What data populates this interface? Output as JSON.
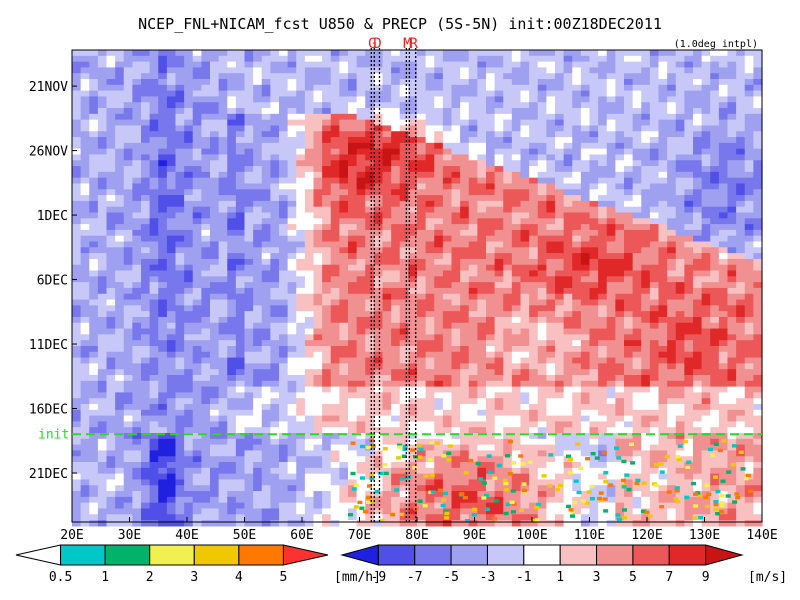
{
  "chart_data": {
    "type": "heatmap",
    "title": "NCEP_FNL+NICAM_fcst U850 & PRECP (5S-5N) init:00Z18DEC2011",
    "subtitle": "(1.0deg intpl)",
    "x_ticks": [
      "20E",
      "30E",
      "40E",
      "50E",
      "60E",
      "70E",
      "80E",
      "90E",
      "100E",
      "110E",
      "120E",
      "130E",
      "140E"
    ],
    "x_range": [
      20,
      140
    ],
    "y_ticks": [
      {
        "label": "21NOV",
        "day": 0
      },
      {
        "label": "26NOV",
        "day": 5
      },
      {
        "label": "1DEC",
        "day": 10
      },
      {
        "label": "6DEC",
        "day": 15
      },
      {
        "label": "11DEC",
        "day": 20
      },
      {
        "label": "16DEC",
        "day": 25
      },
      {
        "label": "21DEC",
        "day": 30
      }
    ],
    "y_range": [
      -2.8,
      33.8
    ],
    "init_line": {
      "label": "init",
      "day": 27,
      "color": "#22dd22"
    },
    "markers": [
      {
        "label": "G",
        "lon": 72.4
      },
      {
        "label": "D",
        "lon": 73.3
      },
      {
        "label": "M",
        "lon": 78.5
      },
      {
        "label": "R",
        "lon": 79.6
      }
    ],
    "marker_color": "#ee2222",
    "precip_colorbar": {
      "unit": "[mm/h]",
      "labels": [
        "0.5",
        "1",
        "2",
        "3",
        "4",
        "5"
      ],
      "colors": [
        "#ffffff",
        "#00c8c8",
        "#00b26a",
        "#f0f050",
        "#f0c800",
        "#ff7800",
        "#fa3232"
      ]
    },
    "u850_colorbar": {
      "unit": "[m/s]",
      "labels": [
        "-9",
        "-7",
        "-5",
        "-3",
        "-1",
        "1",
        "3",
        "5",
        "7",
        "9"
      ],
      "colors": [
        "#2020e0",
        "#5050e8",
        "#7878ec",
        "#a0a0f0",
        "#c8c8f8",
        "#ffffff",
        "#f8c0c0",
        "#f09090",
        "#ec5858",
        "#e02828",
        "#c81414"
      ]
    }
  }
}
